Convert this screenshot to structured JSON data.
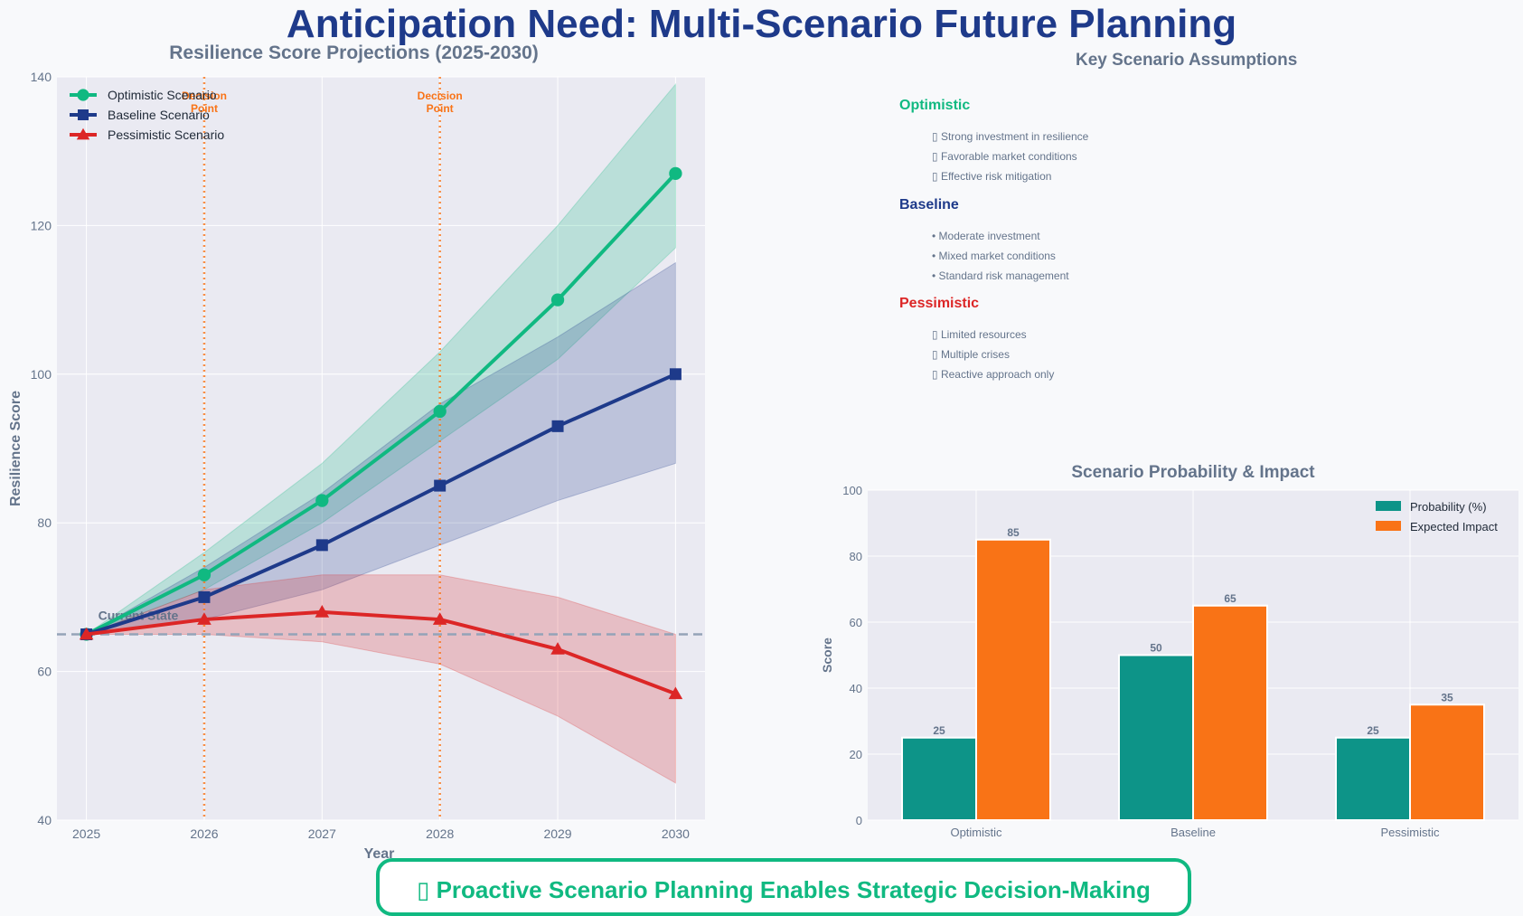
{
  "page": {
    "title": "Anticipation Need: Multi-Scenario Future Planning",
    "banner": "▯ Proactive Scenario Planning Enables Strategic Decision-Making"
  },
  "assumptions": {
    "title": "Key Scenario Assumptions",
    "scenarios": [
      {
        "name": "Optimistic",
        "color": "#10b981",
        "items": [
          "▯ Strong investment in resilience",
          "▯ Favorable market conditions",
          "▯ Effective risk mitigation"
        ]
      },
      {
        "name": "Baseline",
        "color": "#1e3a8a",
        "items": [
          "• Moderate investment",
          "• Mixed market conditions",
          "• Standard risk management"
        ]
      },
      {
        "name": "Pessimistic",
        "color": "#dc2626",
        "items": [
          "▯ Limited resources",
          "▯ Multiple crises",
          "▯ Reactive approach only"
        ]
      }
    ]
  },
  "chart_data": [
    {
      "type": "line",
      "title": "Resilience Score Projections (2025-2030)",
      "xlabel": "Year",
      "ylabel": "Resilience Score",
      "x": [
        2025,
        2026,
        2027,
        2028,
        2029,
        2030
      ],
      "ylim": [
        40,
        140
      ],
      "yticks": [
        40,
        60,
        80,
        100,
        120,
        140
      ],
      "grid": true,
      "legend_position": "top-left",
      "series": [
        {
          "name": "Optimistic Scenario",
          "color": "#10b981",
          "marker": "circle",
          "values": [
            65,
            73,
            83,
            95,
            110,
            127
          ],
          "band_low": [
            65,
            71,
            80,
            91,
            102,
            117
          ],
          "band_high": [
            65,
            76,
            88,
            103,
            120,
            139
          ]
        },
        {
          "name": "Baseline Scenario",
          "color": "#1e3a8a",
          "marker": "square",
          "values": [
            65,
            70,
            77,
            85,
            93,
            100
          ],
          "band_low": [
            65,
            67,
            71,
            77,
            83,
            88
          ],
          "band_high": [
            65,
            74,
            84,
            96,
            105,
            115
          ]
        },
        {
          "name": "Pessimistic Scenario",
          "color": "#dc2626",
          "marker": "triangle",
          "values": [
            65,
            67,
            68,
            67,
            63,
            57
          ],
          "band_low": [
            65,
            65,
            64,
            61,
            54,
            45
          ],
          "band_high": [
            65,
            71,
            73,
            73,
            70,
            65
          ]
        }
      ],
      "reference_line": {
        "value": 65,
        "label": "Current State"
      },
      "decision_points": [
        {
          "x": 2026,
          "label": "Decision Point"
        },
        {
          "x": 2028,
          "label": "Decision Point"
        }
      ]
    },
    {
      "type": "bar",
      "title": "Scenario Probability & Impact",
      "xlabel": "",
      "ylabel": "Score",
      "categories": [
        "Optimistic",
        "Baseline",
        "Pessimistic"
      ],
      "ylim": [
        0,
        100
      ],
      "yticks": [
        0,
        20,
        40,
        60,
        80,
        100
      ],
      "grid": true,
      "legend_position": "top-right",
      "series": [
        {
          "name": "Probability (%)",
          "color": "#0d9488",
          "values": [
            25,
            50,
            25
          ]
        },
        {
          "name": "Expected Impact",
          "color": "#f97316",
          "values": [
            85,
            65,
            35
          ]
        }
      ]
    }
  ]
}
